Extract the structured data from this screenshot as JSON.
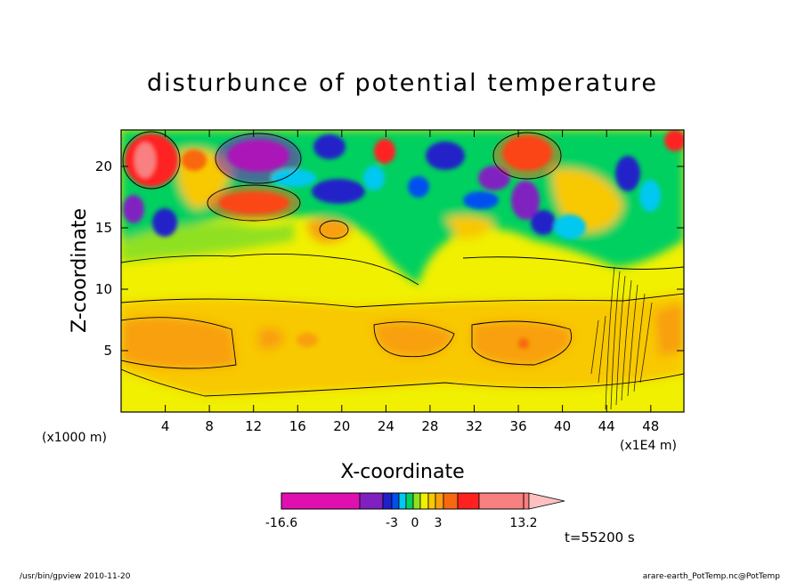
{
  "chart_data": {
    "type": "heatmap",
    "title": "disturbunce of potential temperature",
    "xlabel": "X-coordinate",
    "ylabel": "Z-coordinate",
    "x_unit_left": "(x1000 m)",
    "x_unit_right": "(x1E4 m)",
    "xlim": [
      0,
      51
    ],
    "ylim": [
      0,
      23
    ],
    "x_ticks": [
      "4",
      "8",
      "12",
      "16",
      "20",
      "24",
      "28",
      "32",
      "36",
      "40",
      "44",
      "48"
    ],
    "y_ticks": [
      "5",
      "10",
      "15",
      "20"
    ],
    "colorbar": {
      "min_label": "-16.6",
      "max_label": "13.2",
      "mid_labels": [
        "-3",
        "0",
        "3"
      ],
      "colors": [
        "#e010b0",
        "#8020c0",
        "#2020c8",
        "#0050f0",
        "#00c8f0",
        "#00d060",
        "#90e020",
        "#f0f000",
        "#f8c800",
        "#f8a010",
        "#f86810",
        "#ff2020",
        "#f88080",
        "#ffc0c0"
      ]
    },
    "time_label": "t=55200 s"
  },
  "footer": {
    "left": "/usr/bin/gpview   2010-11-20",
    "right": "arare-earth_PotTemp.nc@PotTemp"
  }
}
